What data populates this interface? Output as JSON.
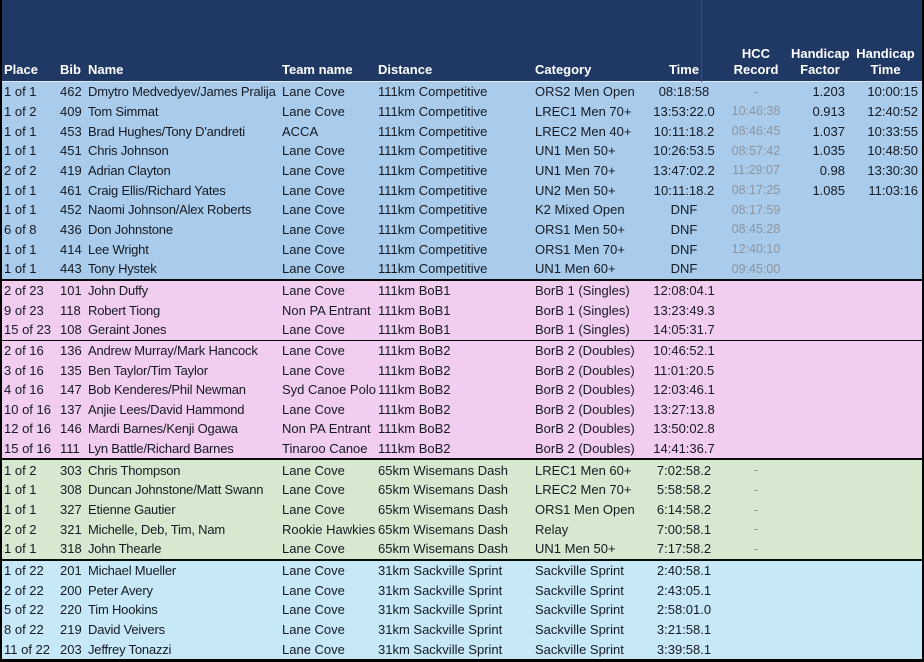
{
  "colors": {
    "header_bg": "#1F3864",
    "header_text": "#FFFFFF",
    "band_competitive": "#A9CCEC",
    "band_bob": "#F1CDEF",
    "band_wisemans": "#D6E9D0",
    "band_sackville": "#C7E8F7",
    "muted_text": "#8D949D",
    "divider": "#0A0A0A",
    "header_gridline": "#31507F"
  },
  "table": {
    "columns": [
      {
        "id": "place",
        "label": "Place",
        "align": "left"
      },
      {
        "id": "bib",
        "label": "Bib",
        "align": "left"
      },
      {
        "id": "name",
        "label": "Name",
        "align": "left"
      },
      {
        "id": "team",
        "label": "Team name",
        "align": "left"
      },
      {
        "id": "distance",
        "label": "Distance",
        "align": "left"
      },
      {
        "id": "category",
        "label": "Category",
        "align": "left"
      },
      {
        "id": "time",
        "label": "Time",
        "align": "center"
      },
      {
        "id": "hcc",
        "label": "HCC\nRecord",
        "align": "center"
      },
      {
        "id": "factor",
        "label": "Handicap\nFactor",
        "align": "center"
      },
      {
        "id": "htime",
        "label": "Handicap\nTime",
        "align": "center"
      }
    ],
    "sections": [
      {
        "group": "111km Competitive",
        "band": "band_competitive",
        "divider_before": "none",
        "rows": [
          {
            "place": "1 of 1",
            "bib": "462",
            "name": "Dmytro Medvedyev/James Pralija",
            "team": "Lane Cove",
            "distance": "111km Competitive",
            "category": "ORS2 Men Open",
            "time": "08:18:58",
            "hcc": "-",
            "factor": "1.203",
            "htime": "10:00:15"
          },
          {
            "place": "1 of 2",
            "bib": "409",
            "name": "Tom Simmat",
            "team": "Lane Cove",
            "distance": "111km Competitive",
            "category": "LREC1 Men 70+",
            "time": "13:53:22.0",
            "hcc": "10:46:38",
            "factor": "0.913",
            "htime": "12:40:52"
          },
          {
            "place": "1 of 1",
            "bib": "453",
            "name": "Brad Hughes/Tony D'andreti",
            "team": "ACCA",
            "distance": "111km Competitive",
            "category": "LREC2 Men 40+",
            "time": "10:11:18.2",
            "hcc": "08:46:45",
            "factor": "1.037",
            "htime": "10:33:55"
          },
          {
            "place": "1 of 1",
            "bib": "451",
            "name": "Chris Johnson",
            "team": "Lane Cove",
            "distance": "111km Competitive",
            "category": "UN1 Men 50+",
            "time": "10:26:53.5",
            "hcc": "08:57:42",
            "factor": "1.035",
            "htime": "10:48:50"
          },
          {
            "place": "2 of 2",
            "bib": "419",
            "name": "Adrian Clayton",
            "team": "Lane Cove",
            "distance": "111km Competitive",
            "category": "UN1 Men 70+",
            "time": "13:47:02.2",
            "hcc": "11:29:07",
            "factor": "0.98",
            "htime": "13:30:30"
          },
          {
            "place": "1 of 1",
            "bib": "461",
            "name": "Craig Ellis/Richard Yates",
            "team": "Lane Cove",
            "distance": "111km Competitive",
            "category": "UN2 Men 50+",
            "time": "10:11:18.2",
            "hcc": "08:17:25",
            "factor": "1.085",
            "htime": "11:03:16"
          },
          {
            "place": "1 of 1",
            "bib": "452",
            "name": "Naomi Johnson/Alex Roberts",
            "team": "Lane Cove",
            "distance": "111km Competitive",
            "category": "K2 Mixed Open",
            "time": "DNF",
            "hcc": "08:17:59",
            "factor": "",
            "htime": ""
          },
          {
            "place": "6 of 8",
            "bib": "436",
            "name": "Don Johnstone",
            "team": "Lane Cove",
            "distance": "111km Competitive",
            "category": "ORS1 Men 50+",
            "time": "DNF",
            "hcc": "08:45:28",
            "factor": "",
            "htime": ""
          },
          {
            "place": "1 of 1",
            "bib": "414",
            "name": "Lee Wright",
            "team": "Lane Cove",
            "distance": "111km Competitive",
            "category": "ORS1 Men 70+",
            "time": "DNF",
            "hcc": "12:40:10",
            "factor": "",
            "htime": ""
          },
          {
            "place": "1 of 1",
            "bib": "443",
            "name": "Tony Hystek",
            "team": "Lane Cove",
            "distance": "111km Competitive",
            "category": "UN1 Men 60+",
            "time": "DNF",
            "hcc": "09:45:00",
            "factor": "",
            "htime": ""
          }
        ]
      },
      {
        "group": "111km BoB1",
        "band": "band_bob",
        "divider_before": "thick",
        "rows": [
          {
            "place": "2 of 23",
            "bib": "101",
            "name": "John Duffy",
            "team": "Lane Cove",
            "distance": "111km BoB1",
            "category": "BorB 1 (Singles)",
            "time": "12:08:04.1",
            "hcc": "",
            "factor": "",
            "htime": ""
          },
          {
            "place": "9 of 23",
            "bib": "118",
            "name": "Robert Tiong",
            "team": "Non PA Entrant",
            "distance": "111km BoB1",
            "category": "BorB 1 (Singles)",
            "time": "13:23:49.3",
            "hcc": "",
            "factor": "",
            "htime": ""
          },
          {
            "place": "15 of 23",
            "bib": "108",
            "name": "Geraint Jones",
            "team": "Lane Cove",
            "distance": "111km BoB1",
            "category": "BorB 1 (Singles)",
            "time": "14:05:31.7",
            "hcc": "",
            "factor": "",
            "htime": ""
          }
        ]
      },
      {
        "group": "111km BoB2",
        "band": "band_bob",
        "divider_before": "thin",
        "rows": [
          {
            "place": "2 of 16",
            "bib": "136",
            "name": "Andrew Murray/Mark Hancock",
            "team": "Lane Cove",
            "distance": "111km BoB2",
            "category": "BorB 2 (Doubles)",
            "time": "10:46:52.1",
            "hcc": "",
            "factor": "",
            "htime": ""
          },
          {
            "place": "3 of 16",
            "bib": "135",
            "name": "Ben Taylor/Tim Taylor",
            "team": "Lane Cove",
            "distance": "111km BoB2",
            "category": "BorB 2 (Doubles)",
            "time": "11:01:20.5",
            "hcc": "",
            "factor": "",
            "htime": ""
          },
          {
            "place": "4 of 16",
            "bib": "147",
            "name": "Bob Kenderes/Phil Newman",
            "team": "Syd Canoe Polo",
            "distance": "111km BoB2",
            "category": "BorB 2 (Doubles)",
            "time": "12:03:46.1",
            "hcc": "",
            "factor": "",
            "htime": ""
          },
          {
            "place": "10 of 16",
            "bib": "137",
            "name": "Anjie Lees/David Hammond",
            "team": "Lane Cove",
            "distance": "111km BoB2",
            "category": "BorB 2 (Doubles)",
            "time": "13:27:13.8",
            "hcc": "",
            "factor": "",
            "htime": ""
          },
          {
            "place": "12 of 16",
            "bib": "146",
            "name": "Mardi Barnes/Kenji Ogawa",
            "team": "Non PA Entrant",
            "distance": "111km BoB2",
            "category": "BorB 2 (Doubles)",
            "time": "13:50:02.8",
            "hcc": "",
            "factor": "",
            "htime": ""
          },
          {
            "place": "15 of 16",
            "bib": "111",
            "name": "Lyn Battle/Richard Barnes",
            "team": "Tinaroo Canoe",
            "distance": "111km BoB2",
            "category": "BorB 2 (Doubles)",
            "time": "14:41:36.7",
            "hcc": "",
            "factor": "",
            "htime": ""
          }
        ]
      },
      {
        "group": "65km Wisemans Dash",
        "band": "band_wisemans",
        "divider_before": "thick",
        "rows": [
          {
            "place": "1 of 2",
            "bib": "303",
            "name": "Chris Thompson",
            "team": "Lane Cove",
            "distance": "65km Wisemans Dash",
            "category": "LREC1 Men 60+",
            "time": "7:02:58.2",
            "hcc": "-",
            "factor": "",
            "htime": ""
          },
          {
            "place": "1 of 1",
            "bib": "308",
            "name": "Duncan Johnstone/Matt Swann",
            "team": "Lane Cove",
            "distance": "65km Wisemans Dash",
            "category": "LREC2 Men 70+",
            "time": "5:58:58.2",
            "hcc": "-",
            "factor": "",
            "htime": ""
          },
          {
            "place": "1 of 1",
            "bib": "327",
            "name": "Etienne Gautier",
            "team": "Lane Cove",
            "distance": "65km Wisemans Dash",
            "category": "ORS1 Men Open",
            "time": "6:14:58.2",
            "hcc": "-",
            "factor": "",
            "htime": ""
          },
          {
            "place": "2 of 2",
            "bib": "321",
            "name": "Michelle, Deb, Tim, Nam",
            "team": "Rookie Hawkies",
            "distance": "65km Wisemans Dash",
            "category": "Relay",
            "time": "7:00:58.1",
            "hcc": "-",
            "factor": "",
            "htime": ""
          },
          {
            "place": "1 of 1",
            "bib": "318",
            "name": "John Thearle",
            "team": "Lane Cove",
            "distance": "65km Wisemans Dash",
            "category": "UN1 Men 50+",
            "time": "7:17:58.2",
            "hcc": "-",
            "factor": "",
            "htime": ""
          }
        ]
      },
      {
        "group": "31km Sackville Sprint",
        "band": "band_sackville",
        "divider_before": "thick",
        "rows": [
          {
            "place": "1 of 22",
            "bib": "201",
            "name": "Michael Mueller",
            "team": "Lane Cove",
            "distance": "31km Sackville Sprint",
            "category": "Sackville Sprint",
            "time": "2:40:58.1",
            "hcc": "",
            "factor": "",
            "htime": ""
          },
          {
            "place": "2 of 22",
            "bib": "200",
            "name": "Peter Avery",
            "team": "Lane Cove",
            "distance": "31km Sackville Sprint",
            "category": "Sackville Sprint",
            "time": "2:43:05.1",
            "hcc": "",
            "factor": "",
            "htime": ""
          },
          {
            "place": "5 of 22",
            "bib": "220",
            "name": "Tim Hookins",
            "team": "Lane Cove",
            "distance": "31km Sackville Sprint",
            "category": "Sackville Sprint",
            "time": "2:58:01.0",
            "hcc": "",
            "factor": "",
            "htime": ""
          },
          {
            "place": "8 of 22",
            "bib": "219",
            "name": "David Veivers",
            "team": "Lane Cove",
            "distance": "31km Sackville Sprint",
            "category": "Sackville Sprint",
            "time": "3:21:58.1",
            "hcc": "",
            "factor": "",
            "htime": ""
          },
          {
            "place": "11 of 22",
            "bib": "203",
            "name": "Jeffrey Tonazzi",
            "team": "Lane Cove",
            "distance": "31km Sackville Sprint",
            "category": "Sackville Sprint",
            "time": "3:39:58.1",
            "hcc": "",
            "factor": "",
            "htime": ""
          }
        ]
      }
    ]
  }
}
